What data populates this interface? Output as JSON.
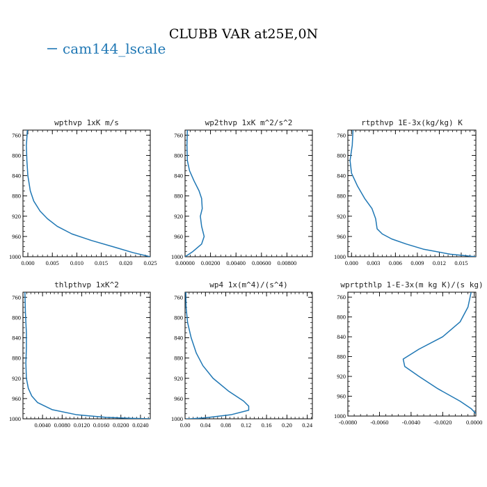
{
  "figure": {
    "title": "CLUBB VAR at25E,0N",
    "legend": [
      {
        "label": "cam144_lscale",
        "color": "#1f77b4"
      }
    ]
  },
  "chart_data": [
    {
      "type": "line",
      "title": "wpthvp  1xK m/s",
      "xlim": [
        -0.001,
        0.025
      ],
      "ylim": [
        1000,
        750
      ],
      "xticks": [
        0.0,
        0.005,
        0.01,
        0.015,
        0.02,
        0.025
      ],
      "xtick_labels": [
        "0.000",
        "0.005",
        "0.010",
        "0.015",
        "0.020",
        "0.025"
      ],
      "yticks": [
        760,
        800,
        840,
        880,
        920,
        960,
        1000
      ],
      "series": [
        {
          "color": "#1f77b4",
          "x": [
            -0.0001,
            -0.0003,
            -0.0002,
            0.0,
            0.0005,
            0.0012,
            0.0025,
            0.004,
            0.006,
            0.009,
            0.013,
            0.018,
            0.0215,
            0.025
          ],
          "y": [
            750,
            780,
            810,
            840,
            870,
            890,
            910,
            925,
            940,
            955,
            968,
            982,
            992,
            1000
          ]
        }
      ]
    },
    {
      "type": "line",
      "title": "wp2thvp  1xK m^2/s^2",
      "xlim": [
        0.0,
        0.01
      ],
      "ylim": [
        1000,
        750
      ],
      "xticks": [
        0.0,
        0.002,
        0.004,
        0.006,
        0.008
      ],
      "xtick_labels": [
        "0.00000",
        "0.00200",
        "0.00400",
        "0.00600",
        "0.00800"
      ],
      "yticks": [
        760,
        800,
        840,
        880,
        920,
        960,
        1000
      ],
      "series": [
        {
          "color": "#1f77b4",
          "x": [
            0.00018,
            0.00015,
            0.00018,
            0.00035,
            0.0007,
            0.0011,
            0.0013,
            0.00135,
            0.0012,
            0.0013,
            0.0015,
            0.0013,
            0.0006,
            0.0
          ],
          "y": [
            750,
            780,
            810,
            830,
            850,
            870,
            885,
            905,
            920,
            940,
            960,
            975,
            990,
            1000
          ]
        }
      ]
    },
    {
      "type": "line",
      "title": "rtpthvp  1E-3x(kg/kg) K",
      "xlim": [
        -0.0005,
        0.017
      ],
      "ylim": [
        1000,
        750
      ],
      "xticks": [
        0.0,
        0.003,
        0.006,
        0.009,
        0.012,
        0.015
      ],
      "xtick_labels": [
        "0.000",
        "0.003",
        "0.006",
        "0.009",
        "0.012",
        "0.015"
      ],
      "yticks": [
        760,
        800,
        840,
        880,
        920,
        960,
        1000
      ],
      "series": [
        {
          "color": "#1f77b4",
          "x": [
            0.0002,
            0.0001,
            -0.0002,
            0.0,
            0.0008,
            0.0018,
            0.0028,
            0.0033,
            0.0035,
            0.0042,
            0.0055,
            0.0075,
            0.0098,
            0.0135,
            0.017
          ],
          "y": [
            750,
            780,
            810,
            835,
            860,
            885,
            905,
            925,
            945,
            955,
            965,
            975,
            985,
            995,
            1000
          ]
        }
      ]
    },
    {
      "type": "line",
      "title": "thlpthvp  1xK^2",
      "xlim": [
        0.0,
        0.026
      ],
      "ylim": [
        1000,
        750
      ],
      "xticks": [
        0.004,
        0.008,
        0.012,
        0.016,
        0.02,
        0.024
      ],
      "xtick_labels": [
        "0.0040",
        "0.0080",
        "0.0120",
        "0.0160",
        "0.0200",
        "0.0240"
      ],
      "yticks": [
        760,
        800,
        840,
        880,
        920,
        960,
        1000
      ],
      "series": [
        {
          "color": "#1f77b4",
          "x": [
            0.0004,
            0.0005,
            0.0007,
            0.0007,
            0.0006,
            0.0007,
            0.0011,
            0.0018,
            0.003,
            0.006,
            0.011,
            0.017,
            0.022,
            0.026
          ],
          "y": [
            750,
            790,
            830,
            860,
            890,
            920,
            940,
            955,
            968,
            982,
            992,
            997,
            999,
            1000
          ]
        }
      ]
    },
    {
      "type": "line",
      "title": "wp4  1x(m^4)/(s^4)",
      "xlim": [
        0.0,
        0.25
      ],
      "ylim": [
        1000,
        750
      ],
      "xticks": [
        0.0,
        0.04,
        0.08,
        0.12,
        0.16,
        0.2,
        0.24
      ],
      "xtick_labels": [
        "0.00",
        "0.04",
        "0.08",
        "0.12",
        "0.16",
        "0.20",
        "0.24"
      ],
      "yticks": [
        760,
        800,
        840,
        880,
        920,
        960,
        1000
      ],
      "series": [
        {
          "color": "#1f77b4",
          "x": [
            0.0015,
            0.002,
            0.005,
            0.012,
            0.022,
            0.035,
            0.055,
            0.085,
            0.115,
            0.125,
            0.125,
            0.09,
            0.04,
            0.01,
            0.002
          ],
          "y": [
            750,
            780,
            810,
            840,
            870,
            895,
            920,
            945,
            965,
            975,
            983,
            992,
            998,
            1000,
            1000
          ]
        }
      ]
    },
    {
      "type": "line",
      "title": "wprtpthlp  1-E-3x(m kg K)/(s kg)",
      "xlim": [
        -0.008,
        0.0001
      ],
      "ylim": [
        1000,
        750
      ],
      "xticks": [
        -0.008,
        -0.006,
        -0.004,
        -0.002,
        0.0
      ],
      "xtick_labels": [
        "-0.0080",
        "-0.0060",
        "-0.0040",
        "-0.0020",
        "0.0000"
      ],
      "yticks": [
        760,
        800,
        840,
        880,
        920,
        960,
        1000
      ],
      "series": [
        {
          "color": "#1f77b4",
          "x": [
            -0.0002,
            -0.0004,
            -0.0009,
            -0.002,
            -0.0035,
            -0.0045,
            -0.0044,
            -0.0035,
            -0.0023,
            -0.0009,
            -0.0002,
            0.0001
          ],
          "y": [
            750,
            780,
            810,
            840,
            865,
            885,
            900,
            920,
            945,
            970,
            985,
            995
          ]
        }
      ]
    }
  ]
}
